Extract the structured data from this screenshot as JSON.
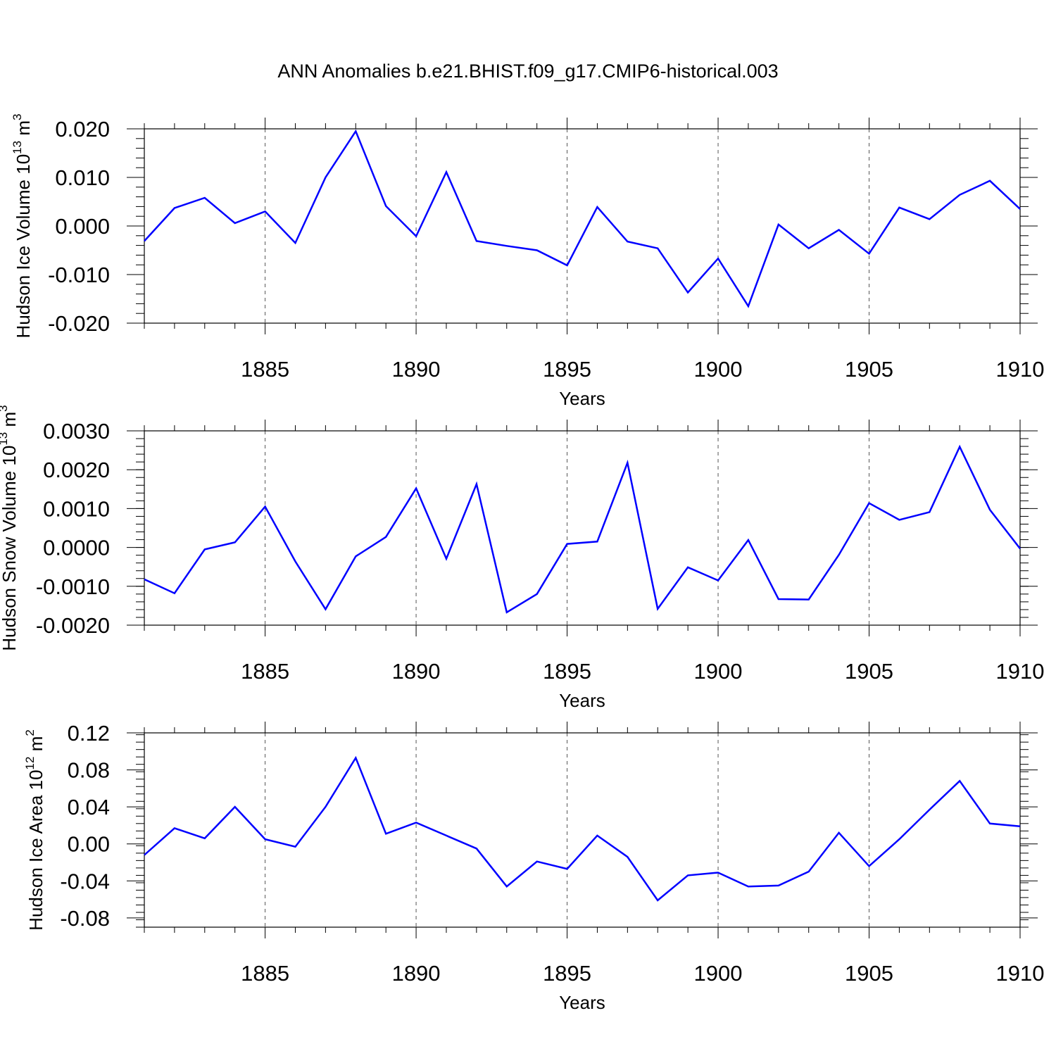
{
  "title": "ANN Anomalies b.e21.BHIST.f09_g17.CMIP6-historical.003",
  "colors": {
    "line": "#0000ff",
    "axes": "#000000",
    "grid": "#555555"
  },
  "chart_data": [
    {
      "type": "line",
      "ylabel": "Hudson Ice Volume 10",
      "ylabel_sup": "13",
      "ylabel_unit": "m",
      "ylabel_unit_sup": "3",
      "xlabel": "Years",
      "xlim": [
        1881,
        1910
      ],
      "ylim": [
        -0.02,
        0.02
      ],
      "xticks": [
        "1885",
        "1890",
        "1895",
        "1900",
        "1905",
        "1910"
      ],
      "yticks": [
        "0.020",
        "0.010",
        "0.000",
        "-0.010",
        "-0.020"
      ],
      "grid": "vertical dashed at major x ticks",
      "x": [
        1881,
        1882,
        1883,
        1884,
        1885,
        1886,
        1887,
        1888,
        1889,
        1890,
        1891,
        1892,
        1893,
        1894,
        1895,
        1896,
        1897,
        1898,
        1899,
        1900,
        1901,
        1902,
        1903,
        1904,
        1905,
        1906,
        1907,
        1908,
        1909,
        1910
      ],
      "series": [
        {
          "values": [
            -0.0031,
            0.0037,
            0.0058,
            0.0006,
            0.003,
            -0.0035,
            0.01,
            0.0195,
            0.0041,
            -0.0021,
            0.0111,
            -0.0031,
            -0.0041,
            -0.005,
            -0.0081,
            0.0039,
            -0.0032,
            -0.0046,
            -0.0137,
            -0.0067,
            -0.0165,
            0.0003,
            -0.0046,
            -0.0008,
            -0.0057,
            0.0038,
            0.0014,
            0.0064,
            0.0093,
            0.0035
          ]
        }
      ]
    },
    {
      "type": "line",
      "ylabel": "Hudson Snow Volume 10",
      "ylabel_sup": "13",
      "ylabel_unit": "m",
      "ylabel_unit_sup": "3",
      "xlabel": "Years",
      "xlim": [
        1881,
        1910
      ],
      "ylim": [
        -0.002,
        0.003
      ],
      "xticks": [
        "1885",
        "1890",
        "1895",
        "1900",
        "1905",
        "1910"
      ],
      "yticks": [
        "0.0030",
        "0.0020",
        "0.0010",
        "0.0000",
        "-0.0010",
        "-0.0020"
      ],
      "grid": "vertical dashed at major x ticks",
      "x": [
        1881,
        1882,
        1883,
        1884,
        1885,
        1886,
        1887,
        1888,
        1889,
        1890,
        1891,
        1892,
        1893,
        1894,
        1895,
        1896,
        1897,
        1898,
        1899,
        1900,
        1901,
        1902,
        1903,
        1904,
        1905,
        1906,
        1907,
        1908,
        1909,
        1910
      ],
      "series": [
        {
          "values": [
            -0.00082,
            -0.00118,
            -5e-05,
            0.00013,
            0.00105,
            -0.00036,
            -0.00159,
            -0.00023,
            0.00027,
            0.00152,
            -0.00029,
            0.00163,
            -0.00167,
            -0.0012,
            9e-05,
            0.00015,
            0.00218,
            -0.00158,
            -0.00051,
            -0.00085,
            0.00019,
            -0.00133,
            -0.00134,
            -0.00019,
            0.00114,
            0.00071,
            0.00091,
            0.00259,
            0.00097,
            -3e-05
          ]
        }
      ]
    },
    {
      "type": "line",
      "ylabel": "Hudson Ice Area 10",
      "ylabel_sup": "12",
      "ylabel_unit": "m",
      "ylabel_unit_sup": "2",
      "xlabel": "Years",
      "xlim": [
        1881,
        1910
      ],
      "ylim": [
        -0.09,
        0.12
      ],
      "xticks": [
        "1885",
        "1890",
        "1895",
        "1900",
        "1905",
        "1910"
      ],
      "yticks": [
        "0.12",
        "0.08",
        "0.04",
        "0.00",
        "-0.04",
        "-0.08"
      ],
      "grid": "vertical dashed at major x ticks",
      "x": [
        1881,
        1882,
        1883,
        1884,
        1885,
        1886,
        1887,
        1888,
        1889,
        1890,
        1891,
        1892,
        1893,
        1894,
        1895,
        1896,
        1897,
        1898,
        1899,
        1900,
        1901,
        1902,
        1903,
        1904,
        1905,
        1906,
        1907,
        1908,
        1909,
        1910
      ],
      "series": [
        {
          "values": [
            -0.012,
            0.017,
            0.006,
            0.04,
            0.005,
            -0.003,
            0.04,
            0.093,
            0.011,
            0.023,
            0.009,
            -0.005,
            -0.046,
            -0.019,
            -0.027,
            0.009,
            -0.014,
            -0.061,
            -0.034,
            -0.031,
            -0.046,
            -0.045,
            -0.03,
            0.012,
            -0.024,
            0.005,
            0.037,
            0.068,
            0.022,
            0.019
          ]
        }
      ]
    }
  ]
}
